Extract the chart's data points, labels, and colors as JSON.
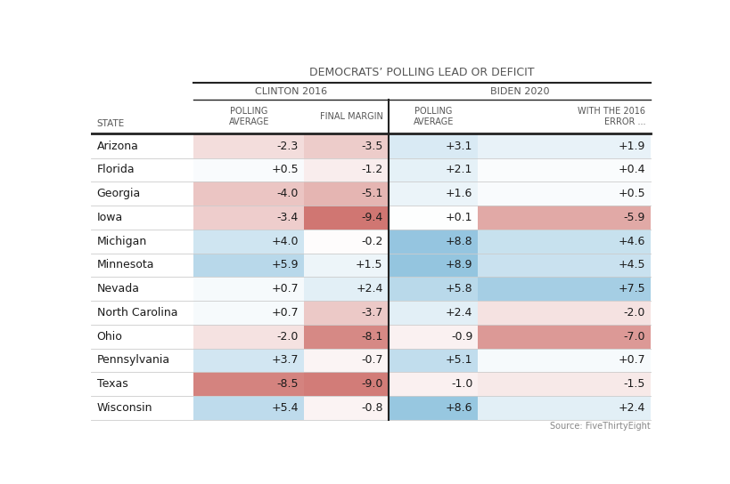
{
  "title": "DEMOCRATS’ POLLING LEAD OR DEFICIT",
  "group1": "CLINTON 2016",
  "group2": "BIDEN 2020",
  "col1": "POLLING\nAVERAGE",
  "col2": "FINAL MARGIN",
  "col3": "POLLING\nAVERAGE",
  "col4": "WITH THE 2016\nERROR ...",
  "state_label": "STATE",
  "source": "Source: FiveThirtyEight",
  "states": [
    "Arizona",
    "Florida",
    "Georgia",
    "Iowa",
    "Michigan",
    "Minnesota",
    "Nevada",
    "North Carolina",
    "Ohio",
    "Pennsylvania",
    "Texas",
    "Wisconsin"
  ],
  "clinton_polling": [
    -2.3,
    0.5,
    -4.0,
    -3.4,
    4.0,
    5.9,
    0.7,
    0.7,
    -2.0,
    3.7,
    -8.5,
    5.4
  ],
  "clinton_final": [
    -3.5,
    -1.2,
    -5.1,
    -9.4,
    -0.2,
    1.5,
    2.4,
    -3.7,
    -8.1,
    -0.7,
    -9.0,
    -0.8
  ],
  "biden_polling": [
    3.1,
    2.1,
    1.6,
    0.1,
    8.8,
    8.9,
    5.8,
    2.4,
    -0.9,
    5.1,
    -1.0,
    8.6
  ],
  "biden_error": [
    1.9,
    0.4,
    0.5,
    -5.9,
    4.6,
    4.5,
    7.5,
    -2.0,
    -7.0,
    0.7,
    -1.5,
    2.4
  ],
  "text_color": "#1a1a1a",
  "header_color": "#555555",
  "line_color": "#cccccc",
  "thick_line_color": "#222222",
  "bg_white": "#ffffff"
}
